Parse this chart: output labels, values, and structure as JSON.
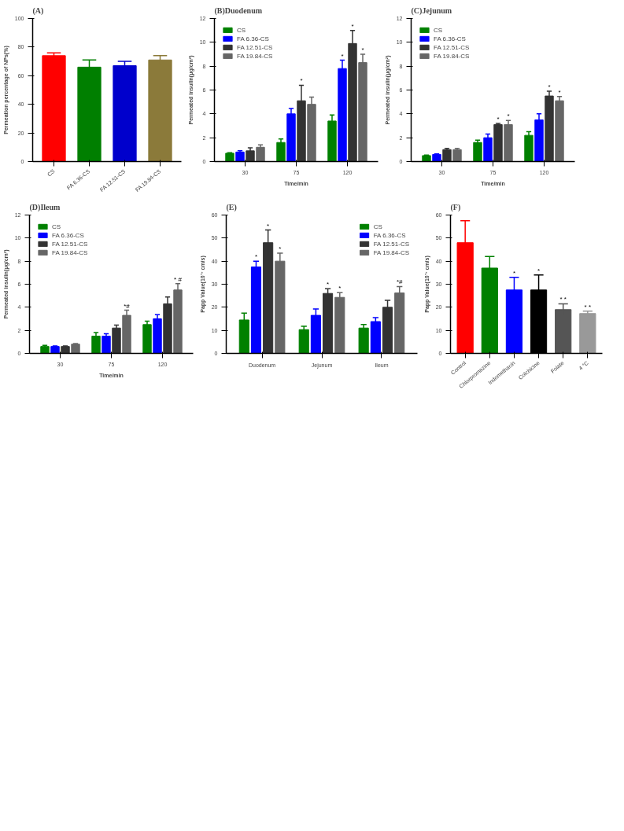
{
  "chart_data": [
    {
      "type": "bar",
      "title": "(A)",
      "ylabel": "Permeation percentage of NPs(%)",
      "categories": [
        "CS",
        "FA 6.36-CS",
        "FA 12.51-CS",
        "FA 19.84-CS"
      ],
      "values": [
        74,
        66,
        67,
        71
      ],
      "errors": [
        2,
        5,
        3,
        3
      ],
      "colors": [
        "#ff0000",
        "#007f00",
        "#0000cc",
        "#8b7a3a"
      ],
      "ylim": [
        0,
        100
      ],
      "yticks": [
        0,
        20,
        40,
        60,
        80,
        100
      ],
      "grid": false,
      "legend": false
    },
    {
      "type": "bar",
      "title": "(B)Duodenum",
      "xlabel": "Time/min",
      "ylabel": "Permeated insulin(μg/cm²)",
      "categories": [
        "30",
        "75",
        "120"
      ],
      "ylim": [
        0,
        12
      ],
      "yticks": [
        0,
        2,
        4,
        6,
        8,
        10,
        12
      ],
      "grid": false,
      "legend": "top left",
      "series": [
        {
          "name": "CS",
          "color": "#008000",
          "values": [
            0.7,
            1.6,
            3.4
          ],
          "errors": [
            0.05,
            0.3,
            0.5
          ]
        },
        {
          "name": "FA 6.36-CS",
          "color": "#0000ff",
          "values": [
            0.8,
            4.0,
            7.8
          ],
          "errors": [
            0.1,
            0.45,
            0.7
          ],
          "value_labels": [
            null,
            null,
            "*"
          ]
        },
        {
          "name": "FA 12.51-CS",
          "color": "#333333",
          "values": [
            0.9,
            5.1,
            9.9
          ],
          "errors": [
            0.25,
            1.3,
            1.1
          ],
          "value_labels": [
            null,
            "*",
            "*"
          ]
        },
        {
          "name": "FA 19.84-CS",
          "color": "#666666",
          "values": [
            1.2,
            4.8,
            8.3
          ],
          "errors": [
            0.2,
            0.6,
            0.7
          ],
          "value_labels": [
            null,
            null,
            "*"
          ]
        }
      ]
    },
    {
      "type": "bar",
      "title": "(C)Jejunum",
      "xlabel": "Time/min",
      "ylabel": "Permeated insulin(μg/cm²)",
      "categories": [
        "30",
        "75",
        "120"
      ],
      "ylim": [
        0,
        12
      ],
      "yticks": [
        0,
        2,
        4,
        6,
        8,
        10,
        12
      ],
      "grid": false,
      "legend": "top left",
      "series": [
        {
          "name": "CS",
          "color": "#008000",
          "values": [
            0.5,
            1.6,
            2.2
          ],
          "errors": [
            0.05,
            0.2,
            0.3
          ]
        },
        {
          "name": "FA 6.36-CS",
          "color": "#0000ff",
          "values": [
            0.6,
            2.0,
            3.5
          ],
          "errors": [
            0.05,
            0.3,
            0.5
          ]
        },
        {
          "name": "FA 12.51-CS",
          "color": "#333333",
          "values": [
            1.0,
            3.1,
            5.5
          ],
          "errors": [
            0.1,
            0.1,
            0.4
          ],
          "value_labels": [
            null,
            "*",
            "*"
          ]
        },
        {
          "name": "FA 19.84-CS",
          "color": "#666666",
          "values": [
            1.0,
            3.1,
            5.1
          ],
          "errors": [
            0.1,
            0.35,
            0.35
          ],
          "value_labels": [
            null,
            "*",
            "*"
          ]
        }
      ]
    },
    {
      "type": "bar",
      "title": "(D)Ileum",
      "xlabel": "Time/min",
      "ylabel": "Permeated insulin(μg/cm²)",
      "categories": [
        "30",
        "75",
        "120"
      ],
      "ylim": [
        0,
        12
      ],
      "yticks": [
        0,
        2,
        4,
        6,
        8,
        10,
        12
      ],
      "grid": false,
      "legend": "top left",
      "series": [
        {
          "name": "CS",
          "color": "#008000",
          "values": [
            0.6,
            1.5,
            2.5
          ],
          "errors": [
            0.1,
            0.3,
            0.3
          ]
        },
        {
          "name": "FA 6.36-CS",
          "color": "#0000ff",
          "values": [
            0.6,
            1.5,
            3.0
          ],
          "errors": [
            0.05,
            0.2,
            0.35
          ]
        },
        {
          "name": "FA 12.51-CS",
          "color": "#333333",
          "values": [
            0.6,
            2.2,
            4.3
          ],
          "errors": [
            0.05,
            0.25,
            0.6
          ]
        },
        {
          "name": "FA 19.84-CS",
          "color": "#666666",
          "values": [
            0.8,
            3.3,
            5.5
          ],
          "errors": [
            0.05,
            0.45,
            0.55
          ],
          "value_labels": [
            null,
            "*#",
            "* #"
          ]
        }
      ]
    },
    {
      "type": "bar",
      "title": "(E)",
      "ylabel": "Papp Value(10⁻⁷ cm/s)",
      "categories": [
        "Duodenum",
        "Jejunum",
        "Ileum"
      ],
      "ylim": [
        0,
        60
      ],
      "yticks": [
        0,
        10,
        20,
        30,
        40,
        50,
        60
      ],
      "grid": false,
      "legend": "top right",
      "series": [
        {
          "name": "CS",
          "color": "#008000",
          "values": [
            14.5,
            10.3,
            11
          ],
          "errors": [
            3,
            1.5,
            1.5
          ]
        },
        {
          "name": "FA 6.36-CS",
          "color": "#0000ff",
          "values": [
            37.5,
            16.5,
            13.8
          ],
          "errors": [
            2.5,
            2.8,
            1.7
          ],
          "value_labels": [
            "*",
            null,
            null
          ]
        },
        {
          "name": "FA 12.51-CS",
          "color": "#333333",
          "values": [
            48,
            26,
            20
          ],
          "errors": [
            5.5,
            2,
            3
          ],
          "value_labels": [
            "*",
            "*",
            null
          ]
        },
        {
          "name": "FA 19.84-CS",
          "color": "#666666",
          "values": [
            40,
            24.3,
            26.2
          ],
          "errors": [
            3.5,
            2,
            2.8
          ],
          "value_labels": [
            "*",
            "*",
            "*#"
          ]
        }
      ]
    },
    {
      "type": "bar",
      "title": "(F)",
      "ylabel": "Papp Value(10⁻⁷ cm/s)",
      "categories": [
        "Control",
        "Chlorpromazine",
        "Indomethacin",
        "Colchicine",
        "Folate",
        "4 °C"
      ],
      "values": [
        48,
        37,
        27.5,
        27.5,
        19,
        17.3
      ],
      "errors": [
        9.5,
        5,
        5.5,
        6.5,
        2.5,
        1
      ],
      "value_labels": [
        null,
        null,
        "*",
        "*",
        "* *",
        "* *"
      ],
      "colors": [
        "#ff0000",
        "#008000",
        "#0000ff",
        "#000000",
        "#555555",
        "#999999"
      ],
      "ylim": [
        0,
        60
      ],
      "yticks": [
        0,
        10,
        20,
        30,
        40,
        50,
        60
      ],
      "grid": false,
      "legend": false
    }
  ]
}
